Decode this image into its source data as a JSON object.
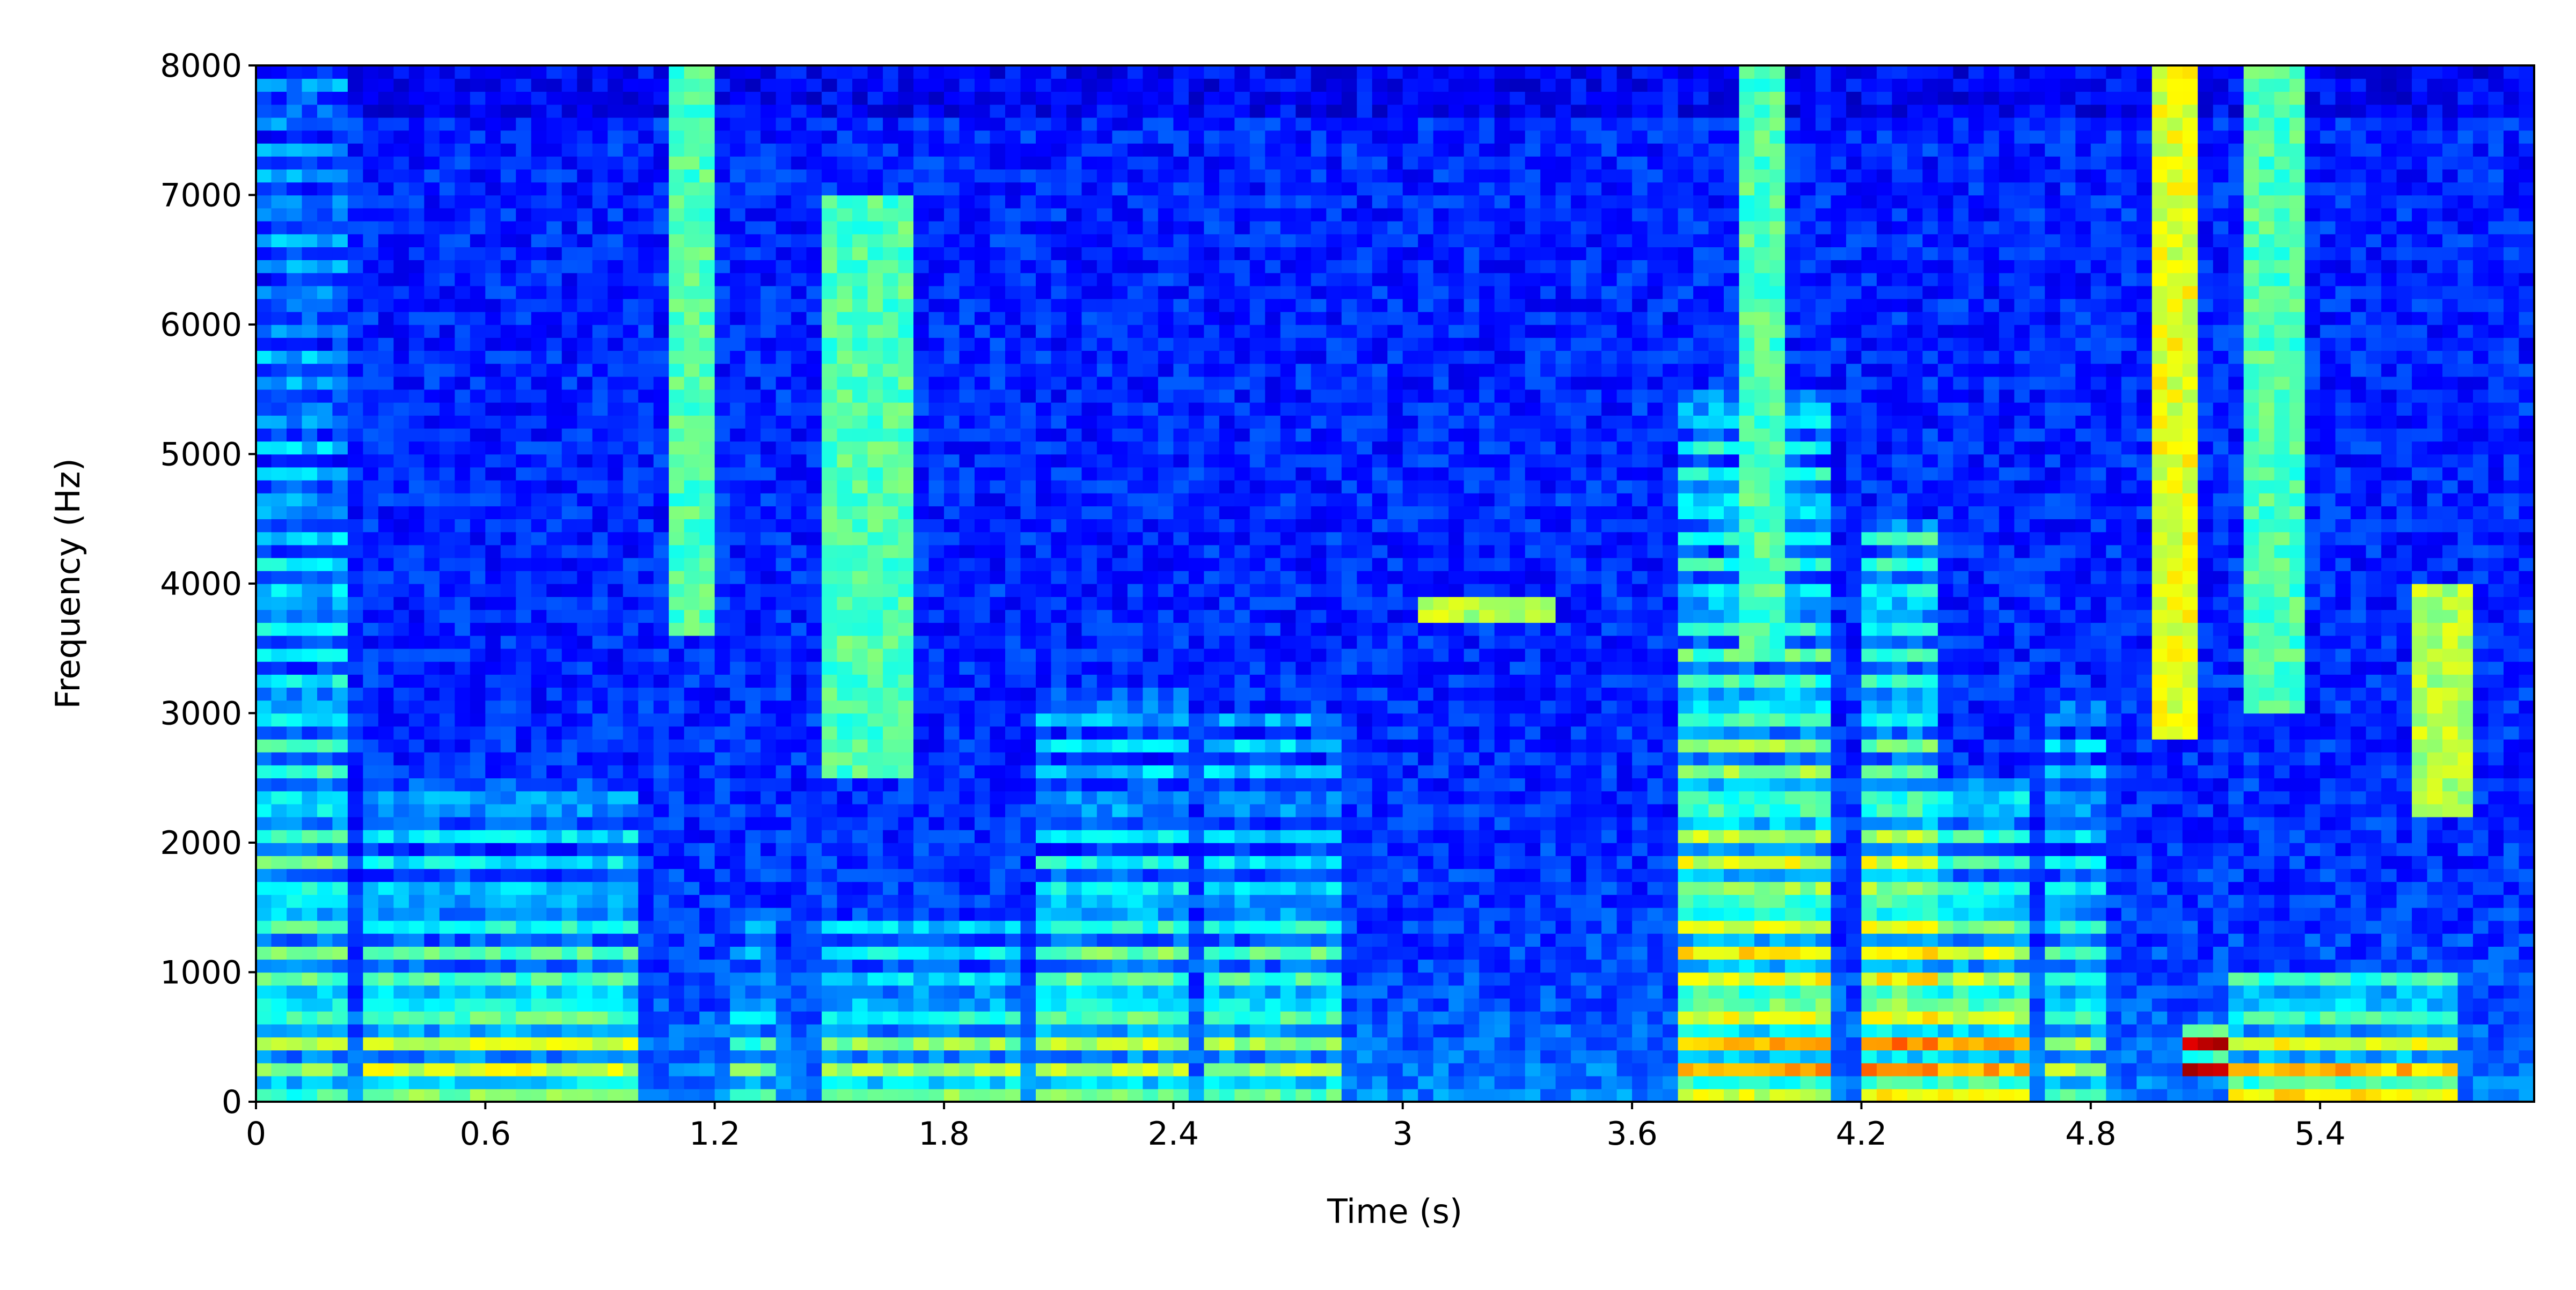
{
  "chart_data": {
    "type": "heatmap",
    "subtype": "spectrogram",
    "title": "",
    "xlabel": "Time (s)",
    "ylabel": "Frequency (Hz)",
    "xlim": [
      0,
      5.96
    ],
    "ylim": [
      0,
      8000
    ],
    "x_ticks": [
      0,
      0.6,
      1.2,
      1.8,
      2.4,
      3.0,
      3.6,
      4.2,
      4.8,
      5.4
    ],
    "x_tick_labels": [
      "0",
      "0.6",
      "1.2",
      "1.8",
      "2.4",
      "3",
      "3.6",
      "4.2",
      "4.8",
      "5.4"
    ],
    "y_ticks": [
      0,
      1000,
      2000,
      3000,
      4000,
      5000,
      6000,
      7000,
      8000
    ],
    "y_tick_labels": [
      "0",
      "1000",
      "2000",
      "3000",
      "4000",
      "5000",
      "6000",
      "7000",
      "8000"
    ],
    "colormap": "jet",
    "colormap_stops": [
      "#00007f",
      "#0000ff",
      "#007fff",
      "#00ffff",
      "#7fff7f",
      "#ffff00",
      "#ff7f00",
      "#ff0000",
      "#7f0000"
    ],
    "grid": false,
    "legend": "none",
    "description_regions": [
      {
        "t_start": 0.0,
        "t_end": 0.25,
        "f_low": 0,
        "f_high": 8000,
        "level": 0.55
      },
      {
        "t_start": 0.28,
        "t_end": 1.0,
        "f_low": 0,
        "f_high": 2500,
        "level": 0.65
      },
      {
        "t_start": 1.08,
        "t_end": 1.2,
        "f_low": 3600,
        "f_high": 8000,
        "level": 0.45
      },
      {
        "t_start": 1.25,
        "t_end": 1.35,
        "f_low": 0,
        "f_high": 1500,
        "level": 0.55
      },
      {
        "t_start": 1.5,
        "t_end": 1.7,
        "f_low": 2500,
        "f_high": 7000,
        "level": 0.45
      },
      {
        "t_start": 1.5,
        "t_end": 2.0,
        "f_low": 0,
        "f_high": 1400,
        "level": 0.65
      },
      {
        "t_start": 2.05,
        "t_end": 2.45,
        "f_low": 0,
        "f_high": 3200,
        "level": 0.62
      },
      {
        "t_start": 2.5,
        "t_end": 2.85,
        "f_low": 0,
        "f_high": 3000,
        "level": 0.6
      },
      {
        "t_start": 3.05,
        "t_end": 3.4,
        "f_low": 3700,
        "f_high": 3850,
        "level": 0.55
      },
      {
        "t_start": 3.72,
        "t_end": 4.1,
        "f_low": 0,
        "f_high": 5500,
        "level": 0.75
      },
      {
        "t_start": 3.88,
        "t_end": 4.0,
        "f_low": 3500,
        "f_high": 8000,
        "level": 0.45
      },
      {
        "t_start": 4.2,
        "t_end": 4.4,
        "f_low": 0,
        "f_high": 4500,
        "level": 0.8
      },
      {
        "t_start": 4.4,
        "t_end": 4.65,
        "f_low": 0,
        "f_high": 2500,
        "level": 0.8
      },
      {
        "t_start": 4.7,
        "t_end": 4.85,
        "f_low": 0,
        "f_high": 3200,
        "level": 0.6
      },
      {
        "t_start": 4.95,
        "t_end": 5.1,
        "f_low": 2800,
        "f_high": 8000,
        "level": 0.6
      },
      {
        "t_start": 5.05,
        "t_end": 5.15,
        "f_low": 200,
        "f_high": 600,
        "level": 0.95
      },
      {
        "t_start": 5.15,
        "t_end": 5.75,
        "f_low": 0,
        "f_high": 1000,
        "level": 0.85
      },
      {
        "t_start": 5.2,
        "t_end": 5.35,
        "f_low": 3000,
        "f_high": 8000,
        "level": 0.45
      },
      {
        "t_start": 5.65,
        "t_end": 5.78,
        "f_low": 2200,
        "f_high": 4000,
        "level": 0.55
      }
    ]
  }
}
